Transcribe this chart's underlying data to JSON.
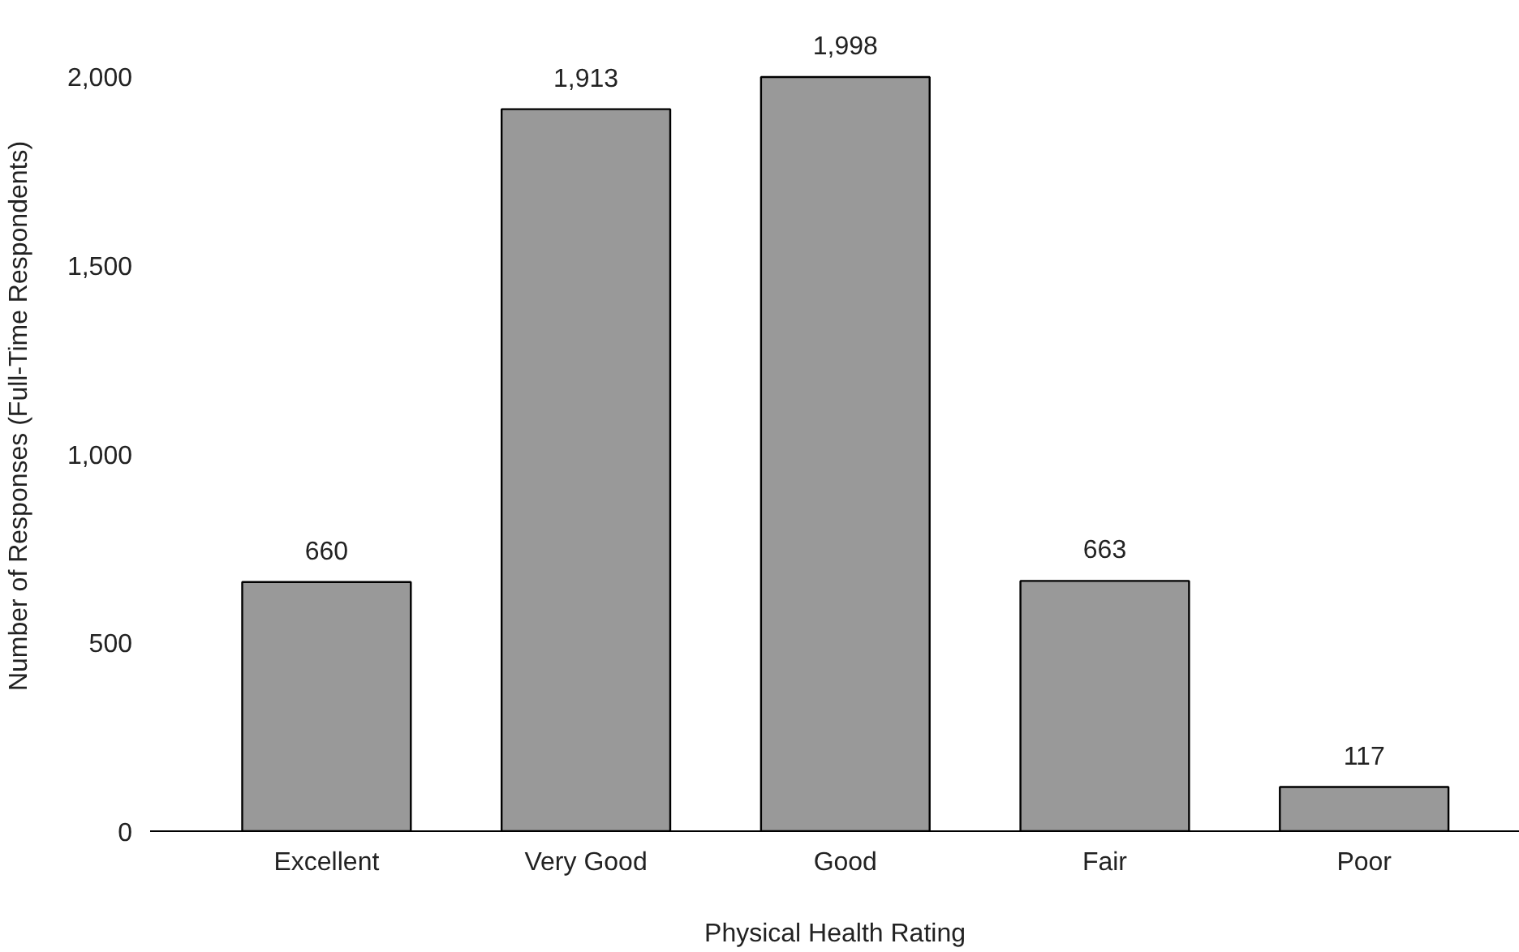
{
  "chart_data": {
    "type": "bar",
    "xlabel": "Physical Health Rating",
    "ylabel": "Number of Responses (Full-Time Respondents)",
    "categories": [
      "Excellent",
      "Very Good",
      "Good",
      "Fair",
      "Poor"
    ],
    "values": [
      660,
      1913,
      1998,
      663,
      117
    ],
    "color": "#999999",
    "ylim": [
      0,
      2000
    ],
    "yticks": [
      0,
      500,
      {
        "value": 1000,
        "label": "1,000"
      },
      {
        "value": 1500,
        "label": "1,500"
      },
      {
        "value": 2000,
        "label": "2,000"
      }
    ],
    "grid": false,
    "value_labels": [
      "660",
      "1,913",
      "1,998",
      "663",
      "117"
    ]
  }
}
